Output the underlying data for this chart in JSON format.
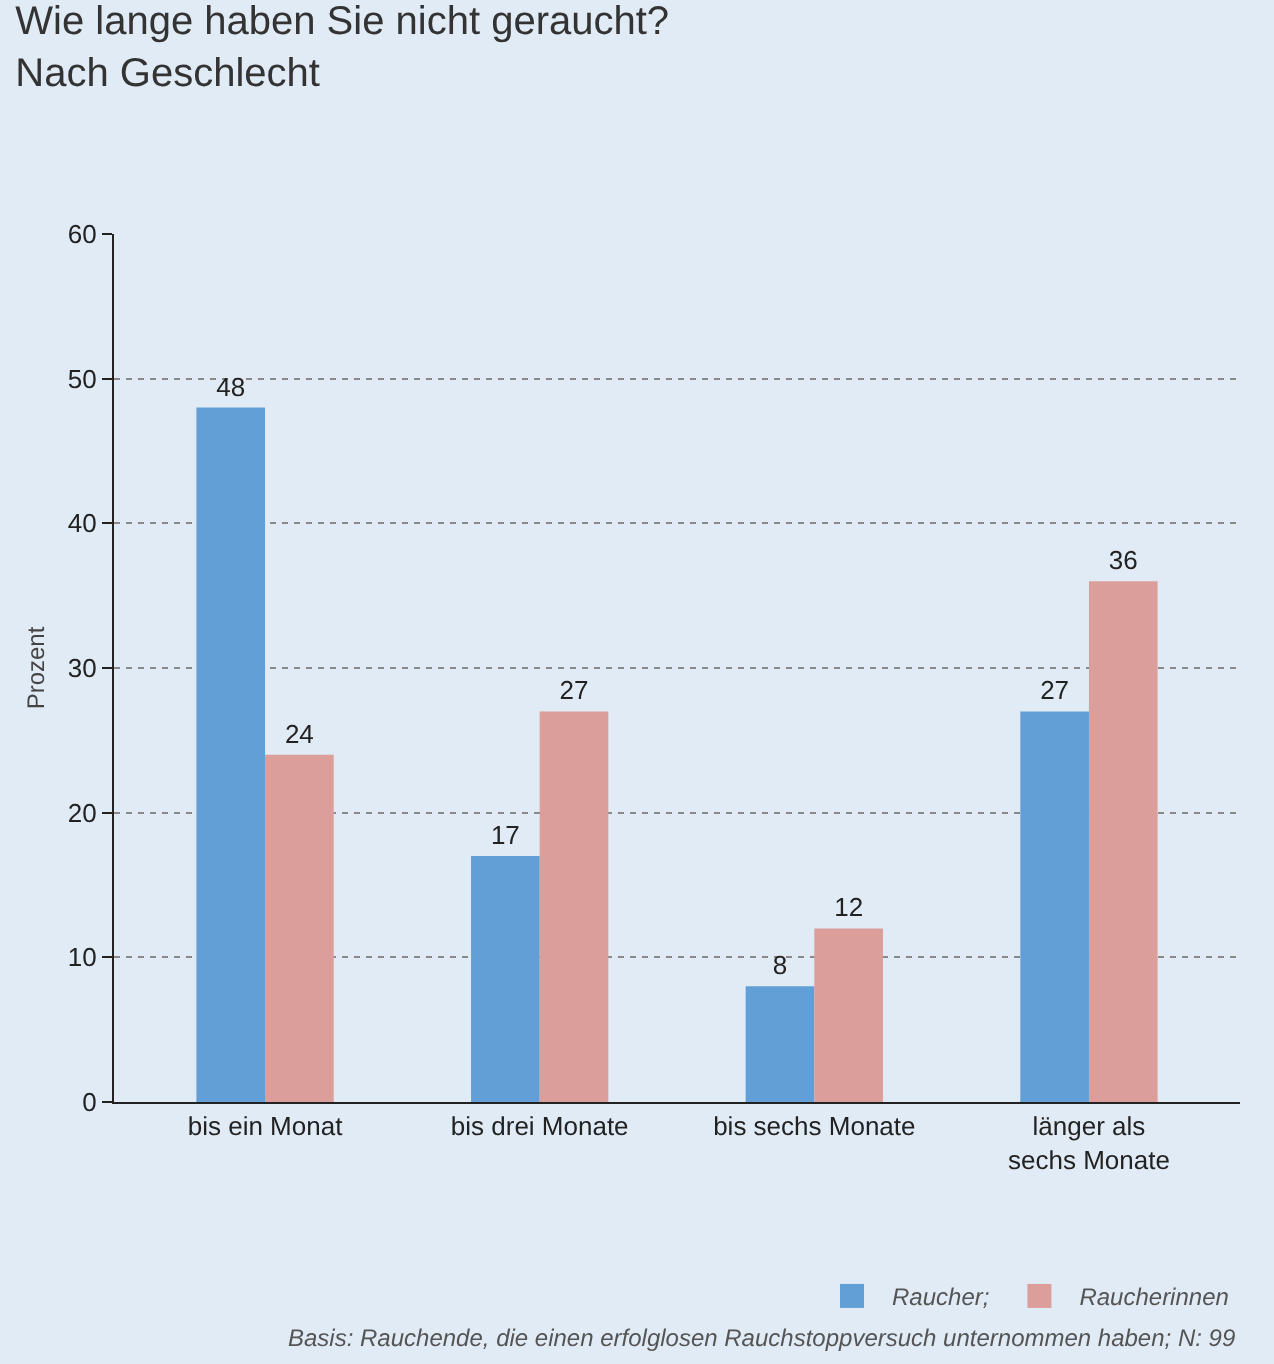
{
  "chart_data": {
    "type": "bar",
    "title": "Wie lange haben Sie nicht geraucht?\nNach Geschlecht",
    "ylabel": "Prozent",
    "categories": [
      "bis ein Monat",
      "bis drei Monate",
      "bis sechs Monate",
      "länger als\nsechs Monate"
    ],
    "series": [
      {
        "name": "Raucher;",
        "color": "#629fd6",
        "values": [
          48,
          17,
          8,
          27
        ]
      },
      {
        "name": "Raucherinnen",
        "color": "#dc9e9b",
        "values": [
          24,
          27,
          12,
          36
        ]
      }
    ],
    "ylim": [
      0,
      60
    ],
    "yticks": [
      0,
      10,
      20,
      30,
      40,
      50,
      60
    ],
    "grid": "y",
    "legend": "bottom right",
    "data_labels": true,
    "annotations": [
      "Basis: Rauchende, die einen erfolglosen Rauchstoppversuch unternommen haben; N: 99"
    ]
  }
}
